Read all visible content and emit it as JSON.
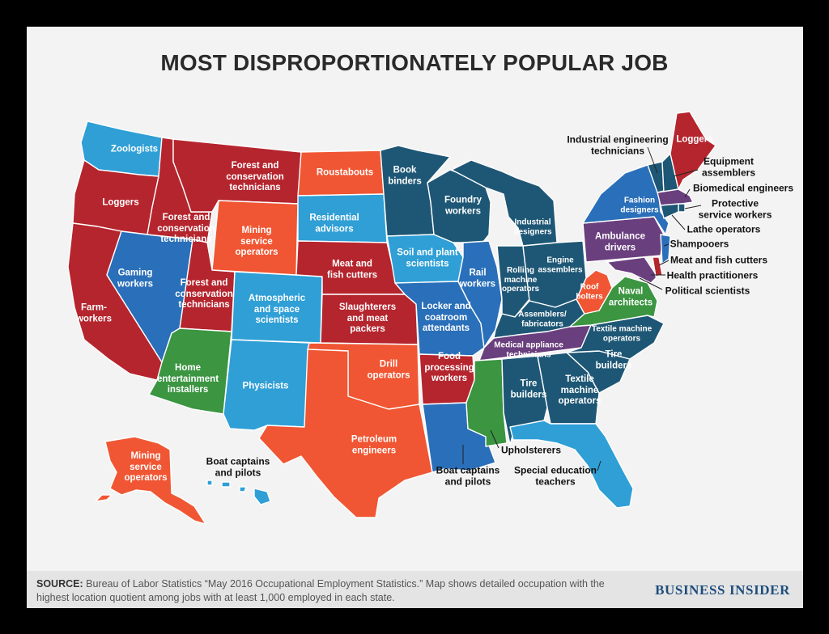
{
  "title": "MOST DISPROPORTIONATELY POPULAR JOB",
  "colors": {
    "red": "#b5252e",
    "orange": "#f05633",
    "light_blue": "#2f9fd6",
    "mid_blue": "#2a6fb9",
    "dark_teal": "#1e5775",
    "green": "#3b9541",
    "purple": "#6a3f7e",
    "background": "#f3f3f3",
    "footer": "#e4e4e4",
    "brand": "#1d4d7c"
  },
  "states": {
    "WA": "Zoologists",
    "OR": "Loggers",
    "CA": "Farm-\nworkers",
    "NV": "Gaming\nworkers",
    "ID": "Forest and\nconservation\ntechnicians",
    "MT": "Forest and\nconservation\ntechnicians",
    "WY": "Mining\nservice\noperators",
    "UT": "Forest and\nconservation\ntechnicians",
    "AZ": "Home\nentertainment\ninstallers",
    "CO": "Atmospheric\nand space\nscientists",
    "NM": "Physicists",
    "ND": "Roustabouts",
    "SD": "Residential\nadvisors",
    "NE": "Meat and\nfish cutters",
    "KS": "Slaughterers\nand meat\npackers",
    "OK": "Drill\noperators",
    "TX": "Petroleum\nengineers",
    "MN": "Book\nbinders",
    "IA": "Soil and plant\nscientists",
    "MO": "Locker and\ncoatroom\nattendants",
    "AR": "Food\nprocessing\nworkers",
    "LA": "Boat captains\nand pilots",
    "WI": "Foundry\nworkers",
    "IL": "Rail\nworkers",
    "MI": "Industrial\ndesigners",
    "IN": "Rolling\nmachine\noperators",
    "OH": "Engine\nassemblers",
    "KY": "Assemblers/\nfabricators",
    "TN": "Medical appliance\ntechnicians",
    "MS": "Upholsterers",
    "AL": "Tire\nbuilders",
    "GA": "Textile\nmachine\noperators",
    "FL": "Special education\nteachers",
    "SC": "Tire\nbuilders",
    "NC": "Textile machine\noperators",
    "VA": "Naval\narchitects",
    "WV": "Roof\nbolters",
    "PA": "Ambulance\ndrivers",
    "NY": "Fashion\ndesigners",
    "VT": "Industrial engineering\ntechnicians",
    "NH": "Equipment\nassemblers",
    "ME": "Loggers",
    "MA": "Biomedical engineers",
    "RI": "Protective\nservice workers",
    "CT": "Lathe operators",
    "NJ": "Shampooers",
    "DE": "Meat and fish cutters",
    "MD": "Health practitioners",
    "DC": "Political scientists",
    "AK": "Mining\nservice\noperators",
    "HI": "Boat captains\nand pilots"
  },
  "source_label": "SOURCE:",
  "source_text": "Bureau of Labor Statistics “May 2016 Occupational Employment Statistics.” Map shows detailed occupation with the highest location quotient among jobs with at least 1,000 employed in each state.",
  "brand": "BUSINESS INSIDER"
}
